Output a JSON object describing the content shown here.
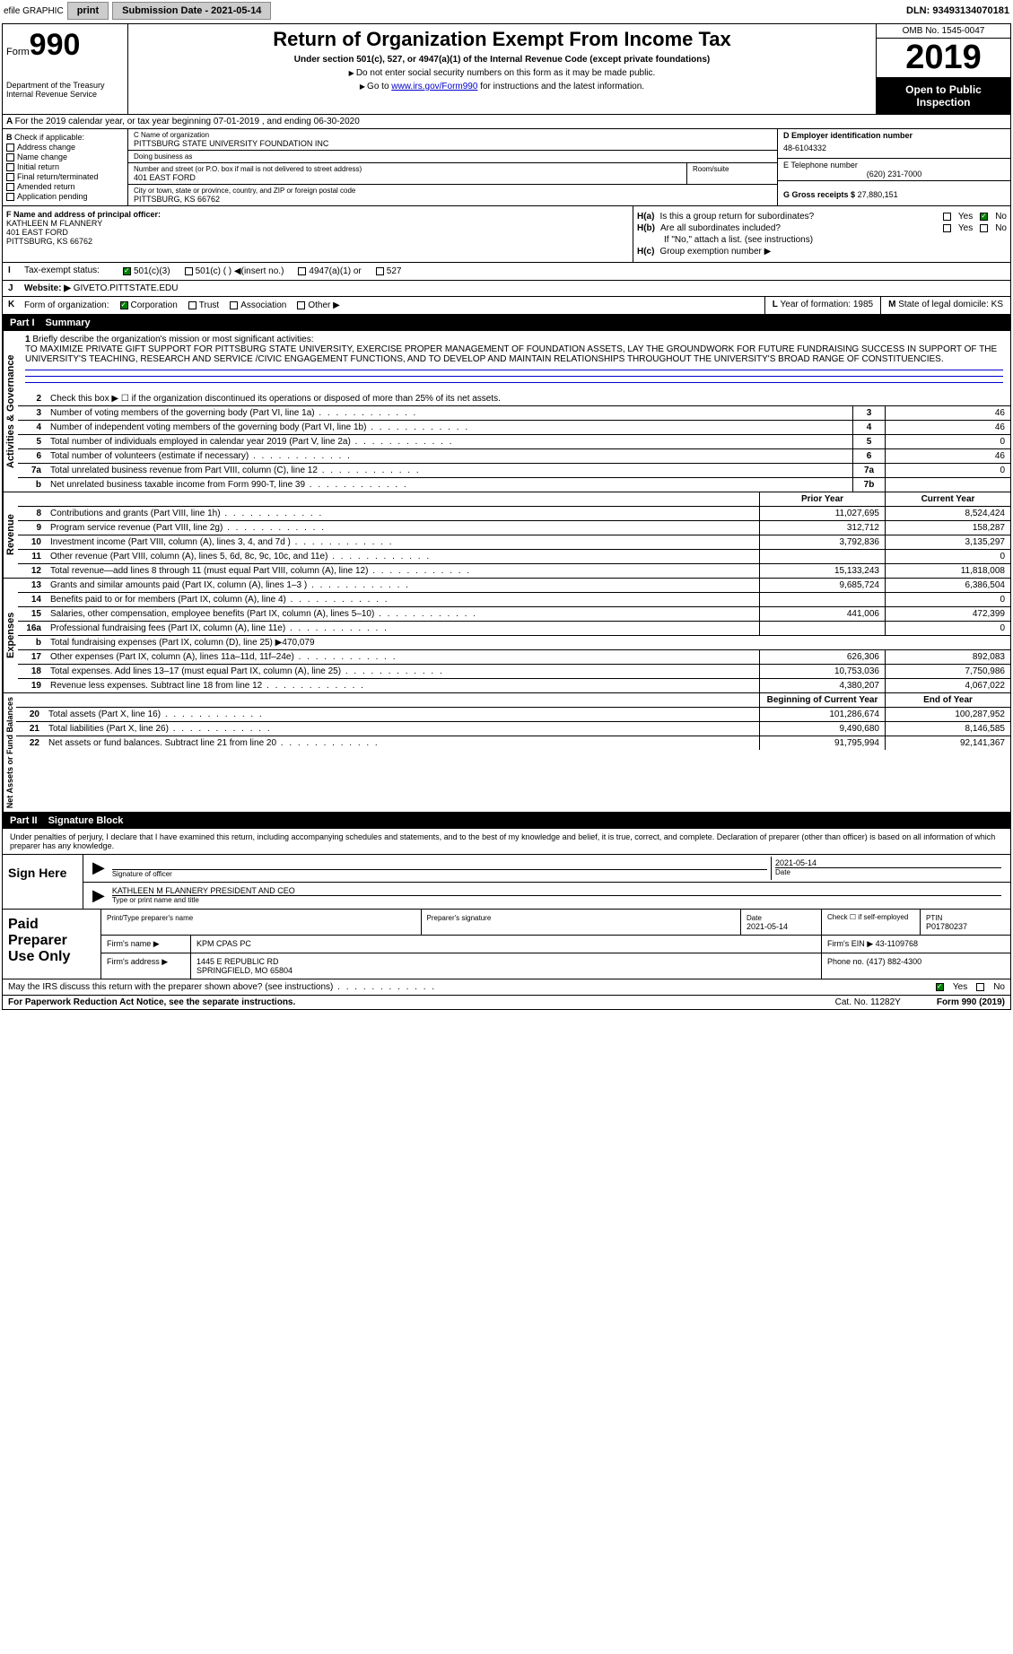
{
  "topbar": {
    "efile": "efile GRAPHIC",
    "print": "print",
    "sub_label": "Submission Date - 2021-05-14",
    "dln": "DLN: 93493134070181"
  },
  "header": {
    "form_word": "Form",
    "form_num": "990",
    "dept": "Department of the Treasury\nInternal Revenue Service",
    "title": "Return of Organization Exempt From Income Tax",
    "subtitle": "Under section 501(c), 527, or 4947(a)(1) of the Internal Revenue Code (except private foundations)",
    "note1": "Do not enter social security numbers on this form as it may be made public.",
    "note2_pre": "Go to ",
    "note2_link": "www.irs.gov/Form990",
    "note2_post": " for instructions and the latest information.",
    "omb": "OMB No. 1545-0047",
    "year": "2019",
    "open": "Open to Public Inspection"
  },
  "rowA": {
    "text": "For the 2019 calendar year, or tax year beginning 07-01-2019   , and ending 06-30-2020"
  },
  "B": {
    "label": "Check if applicable:",
    "items": [
      "Address change",
      "Name change",
      "Initial return",
      "Final return/terminated",
      "Amended return",
      "Application pending"
    ]
  },
  "C": {
    "name_label": "C Name of organization",
    "name": "PITTSBURG STATE UNIVERSITY FOUNDATION INC",
    "dba_label": "Doing business as",
    "dba": "",
    "addr_label": "Number and street (or P.O. box if mail is not delivered to street address)",
    "room_label": "Room/suite",
    "addr": "401 EAST FORD",
    "city_label": "City or town, state or province, country, and ZIP or foreign postal code",
    "city": "PITTSBURG, KS  66762"
  },
  "D": {
    "label": "D Employer identification number",
    "ein": "48-6104332"
  },
  "E": {
    "label": "E Telephone number",
    "phone": "(620) 231-7000"
  },
  "G": {
    "label": "G Gross receipts $",
    "amount": "27,880,151"
  },
  "F": {
    "label": "F  Name and address of principal officer:",
    "name": "KATHLEEN M FLANNERY",
    "addr1": "401 EAST FORD",
    "addr2": "PITTSBURG, KS  66762"
  },
  "H": {
    "a": "Is this a group return for subordinates?",
    "b": "Are all subordinates included?",
    "note": "If \"No,\" attach a list. (see instructions)",
    "c": "Group exemption number ▶"
  },
  "I": {
    "label": "Tax-exempt status:",
    "opts": [
      "501(c)(3)",
      "501(c) (  ) ◀(insert no.)",
      "4947(a)(1) or",
      "527"
    ]
  },
  "J": {
    "label": "Website: ▶",
    "url": "GIVETO.PITTSTATE.EDU"
  },
  "K": {
    "label": "Form of organization:",
    "opts": [
      "Corporation",
      "Trust",
      "Association",
      "Other ▶"
    ]
  },
  "L": {
    "label": "Year of formation:",
    "val": "1985"
  },
  "M": {
    "label": "State of legal domicile:",
    "val": "KS"
  },
  "part1": {
    "title": "Part I",
    "name": "Summary",
    "q1": "Briefly describe the organization's mission or most significant activities:",
    "mission": "TO MAXIMIZE PRIVATE GIFT SUPPORT FOR PITTSBURG STATE UNIVERSITY, EXERCISE PROPER MANAGEMENT OF FOUNDATION ASSETS, LAY THE GROUNDWORK FOR FUTURE FUNDRAISING SUCCESS IN SUPPORT OF THE UNIVERSITY'S TEACHING, RESEARCH AND SERVICE /CIVIC ENGAGEMENT FUNCTIONS, AND TO DEVELOP AND MAINTAIN RELATIONSHIPS THROUGHOUT THE UNIVERSITY'S BROAD RANGE OF CONSTITUENCIES.",
    "q2": "Check this box ▶ ☐ if the organization discontinued its operations or disposed of more than 25% of its net assets.",
    "governance": [
      {
        "n": "3",
        "d": "Number of voting members of the governing body (Part VI, line 1a)",
        "b": "3",
        "v": "46"
      },
      {
        "n": "4",
        "d": "Number of independent voting members of the governing body (Part VI, line 1b)",
        "b": "4",
        "v": "46"
      },
      {
        "n": "5",
        "d": "Total number of individuals employed in calendar year 2019 (Part V, line 2a)",
        "b": "5",
        "v": "0"
      },
      {
        "n": "6",
        "d": "Total number of volunteers (estimate if necessary)",
        "b": "6",
        "v": "46"
      },
      {
        "n": "7a",
        "d": "Total unrelated business revenue from Part VIII, column (C), line 12",
        "b": "7a",
        "v": "0"
      },
      {
        "n": "b",
        "d": "Net unrelated business taxable income from Form 990-T, line 39",
        "b": "7b",
        "v": ""
      }
    ],
    "col_prior": "Prior Year",
    "col_current": "Current Year",
    "revenue": [
      {
        "n": "8",
        "d": "Contributions and grants (Part VIII, line 1h)",
        "p": "11,027,695",
        "c": "8,524,424"
      },
      {
        "n": "9",
        "d": "Program service revenue (Part VIII, line 2g)",
        "p": "312,712",
        "c": "158,287"
      },
      {
        "n": "10",
        "d": "Investment income (Part VIII, column (A), lines 3, 4, and 7d )",
        "p": "3,792,836",
        "c": "3,135,297"
      },
      {
        "n": "11",
        "d": "Other revenue (Part VIII, column (A), lines 5, 6d, 8c, 9c, 10c, and 11e)",
        "p": "",
        "c": "0"
      },
      {
        "n": "12",
        "d": "Total revenue—add lines 8 through 11 (must equal Part VIII, column (A), line 12)",
        "p": "15,133,243",
        "c": "11,818,008"
      }
    ],
    "expenses": [
      {
        "n": "13",
        "d": "Grants and similar amounts paid (Part IX, column (A), lines 1–3 )",
        "p": "9,685,724",
        "c": "6,386,504"
      },
      {
        "n": "14",
        "d": "Benefits paid to or for members (Part IX, column (A), line 4)",
        "p": "",
        "c": "0"
      },
      {
        "n": "15",
        "d": "Salaries, other compensation, employee benefits (Part IX, column (A), lines 5–10)",
        "p": "441,006",
        "c": "472,399"
      },
      {
        "n": "16a",
        "d": "Professional fundraising fees (Part IX, column (A), line 11e)",
        "p": "",
        "c": "0"
      },
      {
        "n": "b",
        "d": "Total fundraising expenses (Part IX, column (D), line 25) ▶470,079",
        "p": null,
        "c": null
      },
      {
        "n": "17",
        "d": "Other expenses (Part IX, column (A), lines 11a–11d, 11f–24e)",
        "p": "626,306",
        "c": "892,083"
      },
      {
        "n": "18",
        "d": "Total expenses. Add lines 13–17 (must equal Part IX, column (A), line 25)",
        "p": "10,753,036",
        "c": "7,750,986"
      },
      {
        "n": "19",
        "d": "Revenue less expenses. Subtract line 18 from line 12",
        "p": "4,380,207",
        "c": "4,067,022"
      }
    ],
    "col_begin": "Beginning of Current Year",
    "col_end": "End of Year",
    "netassets": [
      {
        "n": "20",
        "d": "Total assets (Part X, line 16)",
        "p": "101,286,674",
        "c": "100,287,952"
      },
      {
        "n": "21",
        "d": "Total liabilities (Part X, line 26)",
        "p": "9,490,680",
        "c": "8,146,585"
      },
      {
        "n": "22",
        "d": "Net assets or fund balances. Subtract line 21 from line 20",
        "p": "91,795,994",
        "c": "92,141,367"
      }
    ],
    "vlabels": {
      "gov": "Activities & Governance",
      "rev": "Revenue",
      "exp": "Expenses",
      "net": "Net Assets or Fund Balances"
    }
  },
  "part2": {
    "title": "Part II",
    "name": "Signature Block",
    "penalty": "Under penalties of perjury, I declare that I have examined this return, including accompanying schedules and statements, and to the best of my knowledge and belief, it is true, correct, and complete. Declaration of preparer (other than officer) is based on all information of which preparer has any knowledge.",
    "sign_here": "Sign Here",
    "sig_officer": "Signature of officer",
    "sig_date": "2021-05-14",
    "date_lbl": "Date",
    "officer_name": "KATHLEEN M FLANNERY  PRESIDENT AND CEO",
    "type_name": "Type or print name and title",
    "paid": "Paid Preparer Use Only",
    "prep_name_lbl": "Print/Type preparer's name",
    "prep_sig_lbl": "Preparer's signature",
    "prep_date_lbl": "Date",
    "prep_date": "2021-05-14",
    "self_emp": "Check ☐ if self-employed",
    "ptin_lbl": "PTIN",
    "ptin": "P01780237",
    "firm_name_lbl": "Firm's name    ▶",
    "firm_name": "KPM CPAS PC",
    "firm_ein_lbl": "Firm's EIN ▶",
    "firm_ein": "43-1109768",
    "firm_addr_lbl": "Firm's address ▶",
    "firm_addr1": "1445 E REPUBLIC RD",
    "firm_addr2": "SPRINGFIELD, MO  65804",
    "phone_lbl": "Phone no.",
    "phone": "(417) 882-4300",
    "discuss": "May the IRS discuss this return with the preparer shown above? (see instructions)",
    "yes": "Yes",
    "no": "No"
  },
  "footer": {
    "pra": "For Paperwork Reduction Act Notice, see the separate instructions.",
    "cat": "Cat. No. 11282Y",
    "form": "Form 990 (2019)"
  }
}
